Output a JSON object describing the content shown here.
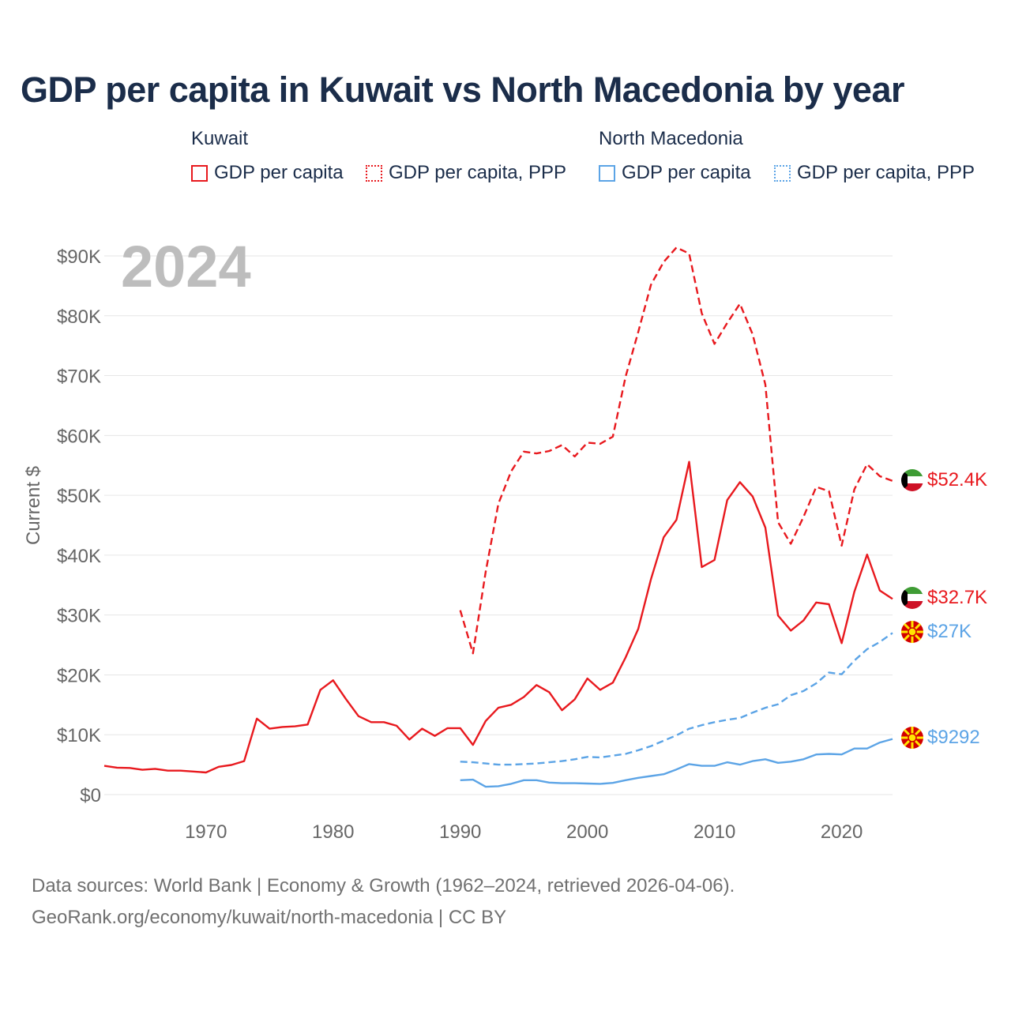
{
  "colors": {
    "kuwait": "#e8191e",
    "macedonia": "#5ca4e6",
    "title": "#1b2d4a",
    "axis_text": "#666666",
    "year_watermark": "#bdbdbd"
  },
  "legend": {
    "kuwait_title": "Kuwait",
    "macedonia_title": "North Macedonia",
    "gdp_label": "GDP per capita",
    "ppp_label": "GDP per capita, PPP"
  },
  "footer": {
    "line1": "Data sources: World Bank | Economy & Growth (1962–2024, retrieved 2026-04-06).",
    "line2": "GeoRank.org/economy/kuwait/north-macedonia | CC BY"
  },
  "chart_data": {
    "type": "line",
    "title": "GDP per capita in Kuwait vs North Macedonia by year",
    "year_label": "2024",
    "xlabel": "",
    "ylabel": "Current $",
    "xlim": [
      1962,
      2024
    ],
    "ylim": [
      0,
      90000
    ],
    "x_ticks": [
      1970,
      1980,
      1990,
      2000,
      2010,
      2020
    ],
    "y_ticks": [
      0,
      10000,
      20000,
      30000,
      40000,
      50000,
      60000,
      70000,
      80000,
      90000
    ],
    "y_tick_labels": [
      "$0",
      "$10K",
      "$20K",
      "$30K",
      "$40K",
      "$50K",
      "$60K",
      "$70K",
      "$80K",
      "$90K"
    ],
    "grid": true,
    "series": [
      {
        "name": "Kuwait GDP per capita",
        "country": "kuwait",
        "style": "solid",
        "end_label": "$32.7K",
        "x_start": 1962,
        "values": [
          4800,
          4500,
          4450,
          4150,
          4300,
          4000,
          4000,
          3850,
          3700,
          4650,
          4950,
          5600,
          12700,
          11000,
          11300,
          11400,
          11700,
          17500,
          19100,
          16000,
          13100,
          12100,
          12100,
          11500,
          9200,
          11000,
          9800,
          11100,
          11100,
          8300,
          12300,
          14500,
          15000,
          16300,
          18300,
          17100,
          14100,
          15900,
          19400,
          17500,
          18700,
          22900,
          27700,
          36000,
          43000,
          45900,
          55600,
          38000,
          39200,
          49200,
          52200,
          49800,
          44600,
          29900,
          27400,
          29100,
          32100,
          31800,
          25300,
          33900,
          40100,
          34100,
          32700
        ]
      },
      {
        "name": "Kuwait GDP per capita, PPP",
        "country": "kuwait",
        "style": "dashed",
        "end_label": "$52.4K",
        "x_start": 1990,
        "values": [
          30800,
          23600,
          37200,
          48600,
          54000,
          57300,
          57000,
          57400,
          58400,
          56500,
          58800,
          58600,
          59800,
          69800,
          77300,
          85200,
          89000,
          91400,
          90400,
          80400,
          75300,
          78800,
          82000,
          76900,
          68500,
          45500,
          41900,
          46400,
          51400,
          50700,
          41600,
          51000,
          55200,
          53200,
          52400
        ]
      },
      {
        "name": "North Macedonia GDP per capita",
        "country": "macedonia",
        "style": "solid",
        "end_label": "$9292",
        "x_start": 1990,
        "values": [
          2400,
          2500,
          1300,
          1400,
          1800,
          2400,
          2400,
          2000,
          1900,
          1900,
          1850,
          1800,
          1950,
          2400,
          2800,
          3100,
          3400,
          4200,
          5100,
          4800,
          4800,
          5400,
          5000,
          5600,
          5900,
          5300,
          5500,
          5900,
          6700,
          6800,
          6700,
          7700,
          7700,
          8700,
          9292
        ]
      },
      {
        "name": "North Macedonia GDP per capita, PPP",
        "country": "macedonia",
        "style": "dashed",
        "end_label": "$27K",
        "x_start": 1990,
        "values": [
          5500,
          5400,
          5200,
          5000,
          5000,
          5100,
          5200,
          5400,
          5600,
          5900,
          6300,
          6200,
          6500,
          6800,
          7400,
          8100,
          9000,
          9900,
          11000,
          11600,
          12100,
          12500,
          12800,
          13700,
          14500,
          15100,
          16600,
          17300,
          18600,
          20400,
          20100,
          22400,
          24300,
          25500,
          27000
        ]
      }
    ]
  }
}
